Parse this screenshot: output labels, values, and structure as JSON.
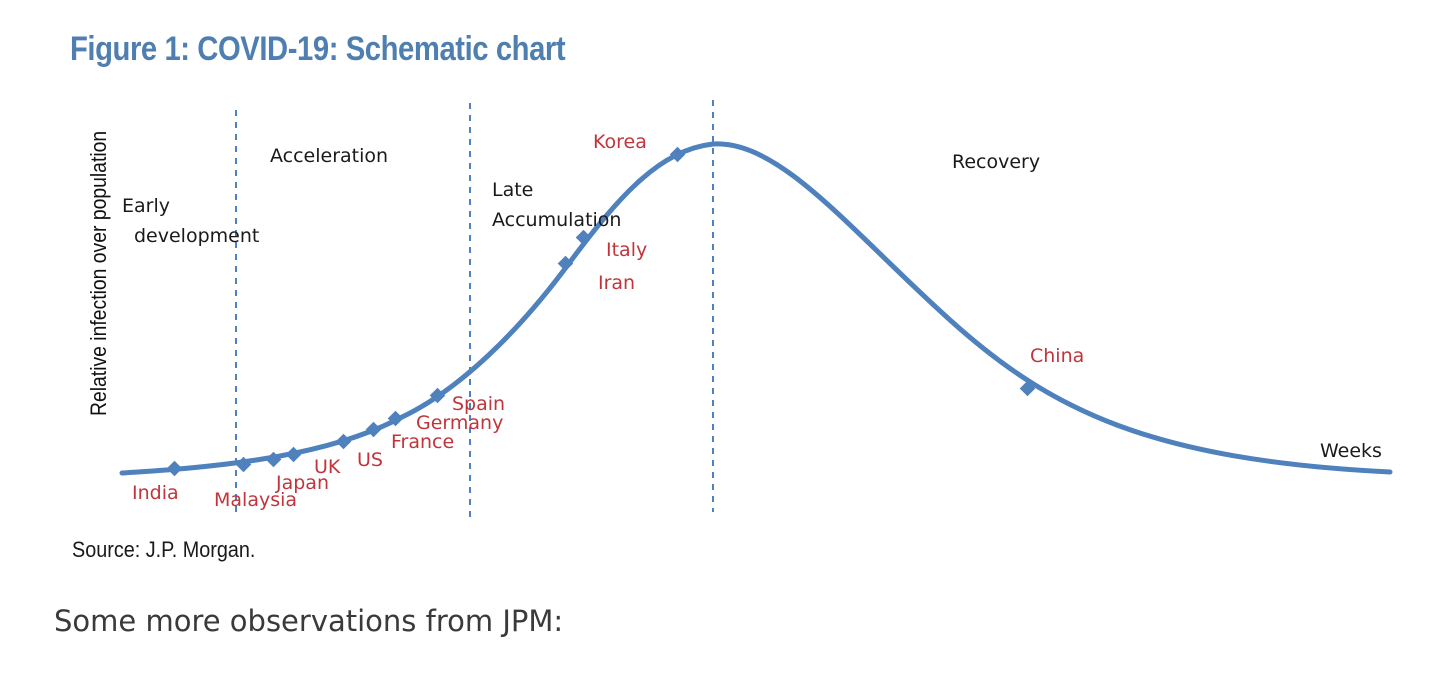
{
  "figure": {
    "title": "Figure 1: COVID-19: Schematic chart",
    "source": "Source: J.P. Morgan."
  },
  "caption": "Some more observations from JPM:",
  "chart_data": {
    "type": "line",
    "schematic": true,
    "title": "Figure 1: COVID-19: Schematic chart",
    "ylabel": "Relative infection over population",
    "xlabel": "Weeks",
    "phases": [
      {
        "name": "Early development",
        "lines": [
          "Early",
          "development"
        ]
      },
      {
        "name": "Acceleration",
        "lines": [
          "Acceleration"
        ]
      },
      {
        "name": "Late Accumulation",
        "lines": [
          "Late",
          "Accumulation"
        ]
      },
      {
        "name": "Recovery",
        "lines": [
          "Recovery"
        ]
      }
    ],
    "countries": [
      "India",
      "Malaysia",
      "Japan",
      "UK",
      "US",
      "France",
      "Germany",
      "Spain",
      "Iran",
      "Italy",
      "Korea",
      "China"
    ],
    "colors": {
      "curve": "#4f81bd",
      "country_label": "#c0353b",
      "title": "#4f7fb0",
      "divider": "#4f81bd"
    },
    "grid": false,
    "legend": "none"
  }
}
